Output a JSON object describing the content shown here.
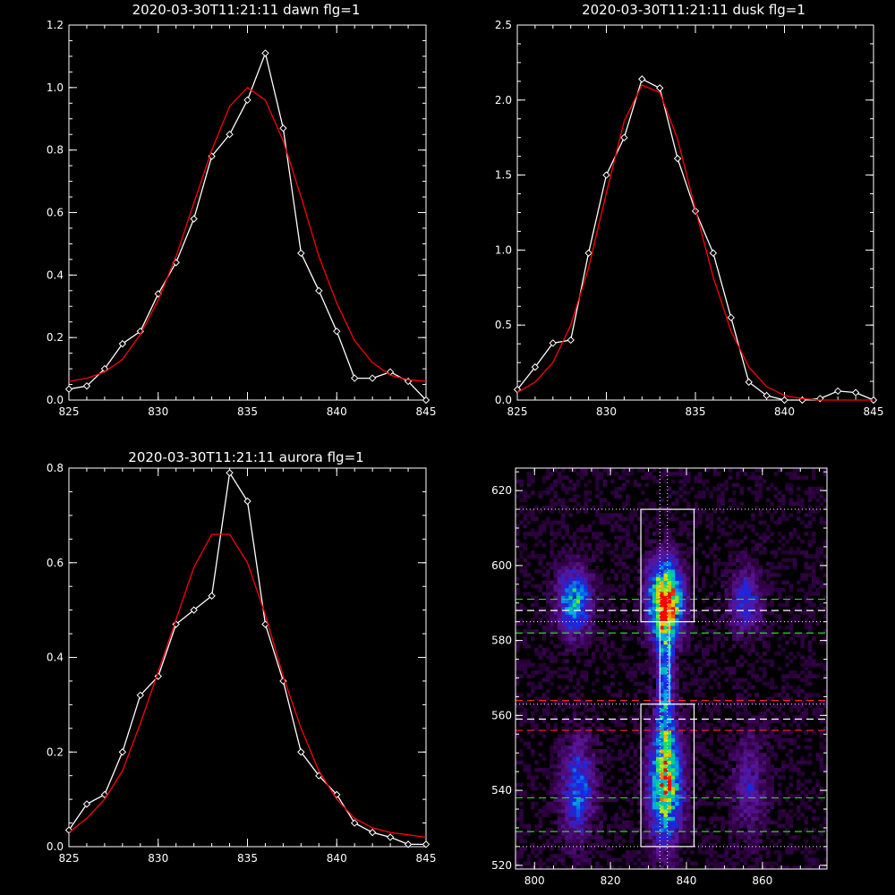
{
  "chart_data": [
    {
      "type": "line",
      "title": "2020-03-30T11:21:11 dawn flg=1",
      "xlim": [
        825,
        845
      ],
      "ylim": [
        0,
        1.2
      ],
      "xticks": [
        "825",
        "830",
        "835",
        "840",
        "845"
      ],
      "yticks": [
        "0.0",
        "0.2",
        "0.4",
        "0.6",
        "0.8",
        "1.0",
        "1.2"
      ],
      "series": [
        {
          "role": "observed",
          "color": "#ffffff",
          "marker": "diamond",
          "x": [
            825,
            826,
            827,
            828,
            829,
            830,
            831,
            832,
            833,
            834,
            835,
            836,
            837,
            838,
            839,
            840,
            841,
            842,
            843,
            844,
            845
          ],
          "y": [
            0.035,
            0.045,
            0.1,
            0.18,
            0.22,
            0.34,
            0.44,
            0.58,
            0.78,
            0.85,
            0.96,
            1.11,
            0.87,
            0.47,
            0.35,
            0.22,
            0.07,
            0.07,
            0.09,
            0.06,
            0.0
          ]
        },
        {
          "role": "fit",
          "color": "#ff0000",
          "x": [
            825,
            826,
            827,
            828,
            829,
            830,
            831,
            832,
            833,
            834,
            835,
            836,
            837,
            838,
            839,
            840,
            841,
            842,
            843,
            844,
            845
          ],
          "y": [
            0.06,
            0.07,
            0.09,
            0.13,
            0.21,
            0.32,
            0.46,
            0.63,
            0.8,
            0.94,
            1.0,
            0.96,
            0.83,
            0.65,
            0.46,
            0.31,
            0.19,
            0.12,
            0.08,
            0.065,
            0.06
          ]
        }
      ]
    },
    {
      "type": "line",
      "title": "2020-03-30T11:21:11 dusk flg=1",
      "xlim": [
        825,
        845
      ],
      "ylim": [
        0,
        2.5
      ],
      "xticks": [
        "825",
        "830",
        "835",
        "840",
        "845"
      ],
      "yticks": [
        "0.0",
        "0.5",
        "1.0",
        "1.5",
        "2.0",
        "2.5"
      ],
      "series": [
        {
          "role": "observed",
          "color": "#ffffff",
          "marker": "diamond",
          "x": [
            825,
            826,
            827,
            828,
            829,
            830,
            831,
            832,
            833,
            834,
            835,
            836,
            837,
            838,
            839,
            840,
            841,
            842,
            843,
            844,
            845
          ],
          "y": [
            0.07,
            0.22,
            0.38,
            0.4,
            0.98,
            1.5,
            1.75,
            2.14,
            2.08,
            1.61,
            1.26,
            0.98,
            0.55,
            0.12,
            0.03,
            0.0,
            0.0,
            0.01,
            0.06,
            0.05,
            0.0
          ]
        },
        {
          "role": "fit",
          "color": "#ff0000",
          "x": [
            825,
            826,
            827,
            828,
            829,
            830,
            831,
            832,
            833,
            834,
            835,
            836,
            837,
            838,
            839,
            840,
            841,
            842,
            843,
            844,
            845
          ],
          "y": [
            0.05,
            0.12,
            0.25,
            0.5,
            0.88,
            1.38,
            1.86,
            2.1,
            2.05,
            1.74,
            1.27,
            0.82,
            0.46,
            0.22,
            0.09,
            0.03,
            0.01,
            0.0,
            0.0,
            0.0,
            0.0
          ]
        }
      ]
    },
    {
      "type": "line",
      "title": "2020-03-30T11:21:11 aurora flg=1",
      "xlim": [
        825,
        845
      ],
      "ylim": [
        0,
        0.8
      ],
      "xticks": [
        "825",
        "830",
        "835",
        "840",
        "845"
      ],
      "yticks": [
        "0.0",
        "0.2",
        "0.4",
        "0.6",
        "0.8"
      ],
      "series": [
        {
          "role": "observed",
          "color": "#ffffff",
          "marker": "diamond",
          "x": [
            825,
            826,
            827,
            828,
            829,
            830,
            831,
            832,
            833,
            834,
            835,
            836,
            837,
            838,
            839,
            840,
            841,
            842,
            843,
            844,
            845
          ],
          "y": [
            0.035,
            0.09,
            0.11,
            0.2,
            0.32,
            0.36,
            0.47,
            0.5,
            0.53,
            0.79,
            0.73,
            0.47,
            0.35,
            0.2,
            0.15,
            0.11,
            0.05,
            0.03,
            0.02,
            0.005,
            0.005
          ]
        },
        {
          "role": "fit",
          "color": "#ff0000",
          "x": [
            825,
            826,
            827,
            828,
            829,
            830,
            831,
            832,
            833,
            834,
            835,
            836,
            837,
            838,
            839,
            840,
            841,
            842,
            843,
            844,
            845
          ],
          "y": [
            0.03,
            0.06,
            0.1,
            0.16,
            0.26,
            0.37,
            0.48,
            0.59,
            0.66,
            0.66,
            0.6,
            0.49,
            0.36,
            0.25,
            0.16,
            0.1,
            0.06,
            0.04,
            0.03,
            0.025,
            0.02
          ]
        }
      ]
    },
    {
      "type": "heatmap",
      "title": "",
      "xlim": [
        795,
        877
      ],
      "ylim": [
        519,
        626
      ],
      "xticks": [
        "800",
        "820",
        "840",
        "860"
      ],
      "yticks": [
        "520",
        "540",
        "560",
        "580",
        "600",
        "620"
      ],
      "colors": {
        "low": "#2a0a3a",
        "high": "#ff0000"
      },
      "blobs": [
        {
          "cx": 810,
          "cy": 590,
          "sx": 3,
          "sy": 6,
          "amp": 0.55
        },
        {
          "cx": 811,
          "cy": 540,
          "sx": 3,
          "sy": 9,
          "amp": 0.4
        },
        {
          "cx": 834,
          "cy": 590,
          "sx": 3,
          "sy": 7,
          "amp": 1.0
        },
        {
          "cx": 834,
          "cy": 541,
          "sx": 3,
          "sy": 10,
          "amp": 0.75
        },
        {
          "cx": 834,
          "cy": 566,
          "sx": 1.5,
          "sy": 14,
          "amp": 0.45
        },
        {
          "cx": 855,
          "cy": 590,
          "sx": 3,
          "sy": 6,
          "amp": 0.3
        },
        {
          "cx": 856,
          "cy": 541,
          "sx": 3,
          "sy": 9,
          "amp": 0.22
        }
      ],
      "boxes": [
        {
          "x0": 828,
          "x1": 842,
          "y0": 585,
          "y1": 615
        },
        {
          "x0": 828,
          "x1": 842,
          "y0": 525,
          "y1": 563
        }
      ],
      "dotted_h": [
        615,
        585,
        563,
        525
      ],
      "dotted_v": [
        833,
        835
      ],
      "dashed_lines": [
        {
          "y": 591,
          "color": "#22dd22"
        },
        {
          "y": 588,
          "color": "#ffffff"
        },
        {
          "y": 582,
          "color": "#22dd22"
        },
        {
          "y": 564,
          "color": "#ff2222"
        },
        {
          "y": 559,
          "color": "#ffffff"
        },
        {
          "y": 556,
          "color": "#ff2222"
        },
        {
          "y": 538,
          "color": "#22dd22"
        },
        {
          "y": 529,
          "color": "#22dd22"
        }
      ]
    }
  ]
}
